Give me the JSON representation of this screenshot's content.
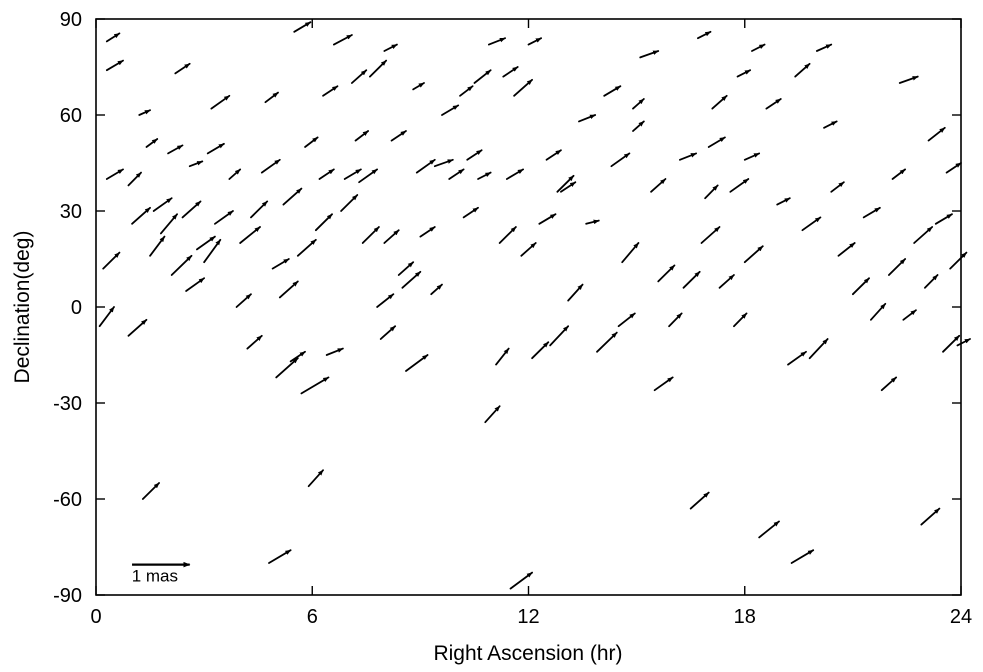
{
  "chart_data": {
    "type": "vector-field",
    "xlabel": "Right Ascension (hr)",
    "ylabel": "Declination(deg)",
    "xlim": [
      0,
      24
    ],
    "ylim": [
      -90,
      90
    ],
    "xticks": [
      0,
      6,
      12,
      18,
      24
    ],
    "yticks": [
      -90,
      -60,
      -30,
      0,
      30,
      60,
      90
    ],
    "grid": false,
    "legend": "none",
    "arrow_color": "#000000",
    "scale_bar": {
      "label": "1 mas",
      "ra": 1.0,
      "dec": -80.5,
      "d_ra": 1.6,
      "d_dec": 0
    },
    "vectors": [
      [
        0.3,
        40,
        0.45,
        3
      ],
      [
        0.3,
        83,
        0.35,
        2.5
      ],
      [
        0.3,
        74,
        0.45,
        3
      ],
      [
        0.1,
        -6,
        0.4,
        6
      ],
      [
        0.2,
        12,
        0.45,
        5
      ],
      [
        0.9,
        38,
        0.35,
        4
      ],
      [
        1.0,
        26,
        0.5,
        5
      ],
      [
        0.9,
        -9,
        0.5,
        5
      ],
      [
        1.2,
        60,
        0.3,
        1.5
      ],
      [
        1.3,
        -60,
        0.45,
        5
      ],
      [
        1.4,
        50,
        0.3,
        2.5
      ],
      [
        1.5,
        16,
        0.4,
        6
      ],
      [
        1.6,
        30,
        0.5,
        4
      ],
      [
        1.8,
        23,
        0.45,
        6
      ],
      [
        2.0,
        48,
        0.4,
        2.5
      ],
      [
        2.1,
        10,
        0.55,
        6
      ],
      [
        2.2,
        73,
        0.4,
        3
      ],
      [
        2.4,
        28,
        0.5,
        5
      ],
      [
        2.5,
        5,
        0.5,
        4
      ],
      [
        2.6,
        44,
        0.35,
        1.5
      ],
      [
        2.8,
        18,
        0.5,
        4
      ],
      [
        3.0,
        14,
        0.45,
        7
      ],
      [
        3.1,
        48,
        0.45,
        3
      ],
      [
        3.2,
        62,
        0.5,
        4
      ],
      [
        3.3,
        26,
        0.5,
        4
      ],
      [
        3.7,
        40,
        0.3,
        3
      ],
      [
        3.9,
        0,
        0.4,
        4
      ],
      [
        4.0,
        20,
        0.55,
        5
      ],
      [
        4.2,
        -13,
        0.4,
        4
      ],
      [
        4.3,
        28,
        0.45,
        5
      ],
      [
        4.6,
        42,
        0.5,
        4
      ],
      [
        4.7,
        64,
        0.35,
        3
      ],
      [
        4.8,
        -80,
        0.6,
        4
      ],
      [
        4.9,
        12,
        0.45,
        3
      ],
      [
        5.0,
        -22,
        0.6,
        6
      ],
      [
        5.1,
        3,
        0.5,
        5
      ],
      [
        5.2,
        32,
        0.5,
        5
      ],
      [
        5.4,
        -17,
        0.4,
        3
      ],
      [
        5.5,
        86,
        0.45,
        3
      ],
      [
        5.6,
        16,
        0.5,
        5
      ],
      [
        5.7,
        -27,
        0.75,
        5
      ],
      [
        5.8,
        50,
        0.35,
        3
      ],
      [
        5.9,
        -56,
        0.4,
        5
      ],
      [
        6.1,
        24,
        0.45,
        5
      ],
      [
        6.2,
        40,
        0.4,
        3
      ],
      [
        6.3,
        66,
        0.4,
        3
      ],
      [
        6.4,
        -15,
        0.45,
        2
      ],
      [
        6.6,
        82,
        0.5,
        3
      ],
      [
        6.8,
        30,
        0.45,
        5
      ],
      [
        6.9,
        40,
        0.45,
        3
      ],
      [
        7.1,
        70,
        0.4,
        4
      ],
      [
        7.2,
        52,
        0.35,
        3
      ],
      [
        7.4,
        20,
        0.45,
        5
      ],
      [
        7.6,
        72,
        0.45,
        5
      ],
      [
        7.8,
        0,
        0.45,
        4
      ],
      [
        7.9,
        -10,
        0.4,
        4
      ],
      [
        8.0,
        80,
        0.35,
        2
      ],
      [
        8.0,
        20,
        0.4,
        4
      ],
      [
        8.2,
        52,
        0.4,
        3
      ],
      [
        8.4,
        10,
        0.4,
        4
      ],
      [
        8.5,
        6,
        0.5,
        5
      ],
      [
        8.6,
        -20,
        0.6,
        5
      ],
      [
        8.8,
        68,
        0.3,
        2
      ],
      [
        8.9,
        42,
        0.5,
        4
      ],
      [
        9.0,
        22,
        0.4,
        3
      ],
      [
        9.3,
        4,
        0.3,
        3
      ],
      [
        9.4,
        44,
        0.5,
        2
      ],
      [
        9.6,
        60,
        0.45,
        3
      ],
      [
        9.8,
        40,
        0.4,
        3
      ],
      [
        10.1,
        66,
        0.35,
        3
      ],
      [
        10.2,
        28,
        0.4,
        3
      ],
      [
        10.3,
        46,
        0.4,
        3
      ],
      [
        10.5,
        70,
        0.45,
        4
      ],
      [
        10.6,
        40,
        0.35,
        2
      ],
      [
        10.8,
        -36,
        0.4,
        5
      ],
      [
        10.9,
        82,
        0.45,
        2
      ],
      [
        11.1,
        -18,
        0.35,
        5
      ],
      [
        11.2,
        20,
        0.45,
        5
      ],
      [
        11.3,
        72,
        0.4,
        3
      ],
      [
        11.4,
        40,
        0.45,
        3
      ],
      [
        11.5,
        -88,
        0.6,
        5
      ],
      [
        11.6,
        66,
        0.5,
        5
      ],
      [
        11.8,
        16,
        0.4,
        4
      ],
      [
        12.0,
        82,
        0.35,
        2
      ],
      [
        12.1,
        -16,
        0.45,
        5
      ],
      [
        12.3,
        26,
        0.45,
        3
      ],
      [
        12.5,
        46,
        0.4,
        3
      ],
      [
        12.6,
        -12,
        0.5,
        6
      ],
      [
        12.8,
        36,
        0.45,
        5
      ],
      [
        13.1,
        2,
        0.4,
        5
      ],
      [
        13.4,
        58,
        0.45,
        2
      ],
      [
        13.6,
        26,
        0.35,
        1
      ],
      [
        13.9,
        -14,
        0.55,
        6
      ],
      [
        14.1,
        66,
        0.45,
        3
      ],
      [
        14.3,
        44,
        0.5,
        4
      ],
      [
        14.5,
        -6,
        0.45,
        4
      ],
      [
        14.6,
        14,
        0.45,
        6
      ],
      [
        14.9,
        62,
        0.3,
        3
      ],
      [
        15.1,
        78,
        0.5,
        2
      ],
      [
        15.4,
        36,
        0.4,
        4
      ],
      [
        15.5,
        -26,
        0.5,
        4
      ],
      [
        15.6,
        8,
        0.45,
        5
      ],
      [
        15.9,
        -6,
        0.35,
        4
      ],
      [
        16.2,
        46,
        0.45,
        2
      ],
      [
        16.3,
        6,
        0.45,
        5
      ],
      [
        16.5,
        -63,
        0.5,
        5
      ],
      [
        16.7,
        84,
        0.35,
        2
      ],
      [
        16.8,
        20,
        0.5,
        5
      ],
      [
        17.0,
        50,
        0.45,
        3
      ],
      [
        17.1,
        62,
        0.4,
        4
      ],
      [
        17.3,
        6,
        0.4,
        4
      ],
      [
        17.6,
        36,
        0.5,
        4
      ],
      [
        17.7,
        -6,
        0.35,
        4
      ],
      [
        17.8,
        72,
        0.35,
        2
      ],
      [
        18.0,
        46,
        0.4,
        2
      ],
      [
        18.0,
        14,
        0.5,
        5
      ],
      [
        18.2,
        80,
        0.35,
        2
      ],
      [
        18.4,
        -72,
        0.55,
        5
      ],
      [
        18.6,
        62,
        0.4,
        3
      ],
      [
        18.9,
        32,
        0.35,
        2
      ],
      [
        19.2,
        -18,
        0.5,
        4
      ],
      [
        19.3,
        -80,
        0.6,
        4
      ],
      [
        19.4,
        72,
        0.4,
        4
      ],
      [
        19.6,
        24,
        0.5,
        4
      ],
      [
        19.8,
        -16,
        0.5,
        6
      ],
      [
        20.0,
        80,
        0.4,
        2
      ],
      [
        20.2,
        56,
        0.35,
        2
      ],
      [
        20.4,
        36,
        0.35,
        3
      ],
      [
        20.6,
        16,
        0.45,
        4
      ],
      [
        21.0,
        4,
        0.45,
        5
      ],
      [
        21.3,
        28,
        0.45,
        3
      ],
      [
        21.5,
        -4,
        0.4,
        5
      ],
      [
        21.8,
        -26,
        0.4,
        4
      ],
      [
        22.0,
        10,
        0.45,
        5
      ],
      [
        22.1,
        40,
        0.35,
        3
      ],
      [
        22.3,
        70,
        0.5,
        2
      ],
      [
        22.4,
        -4,
        0.35,
        3
      ],
      [
        22.7,
        20,
        0.5,
        5
      ],
      [
        22.9,
        -68,
        0.5,
        5
      ],
      [
        23.0,
        6,
        0.35,
        4
      ],
      [
        23.1,
        52,
        0.45,
        4
      ],
      [
        23.3,
        26,
        0.45,
        3
      ],
      [
        23.5,
        -14,
        0.45,
        5
      ],
      [
        23.6,
        42,
        0.4,
        3
      ],
      [
        23.7,
        12,
        0.45,
        5
      ],
      [
        23.9,
        -12,
        0.35,
        2
      ],
      [
        7.3,
        39,
        0.5,
        4
      ],
      [
        12.9,
        36,
        0.4,
        3
      ],
      [
        16.9,
        34,
        0.35,
        4
      ],
      [
        14.9,
        55,
        0.3,
        3
      ]
    ]
  }
}
